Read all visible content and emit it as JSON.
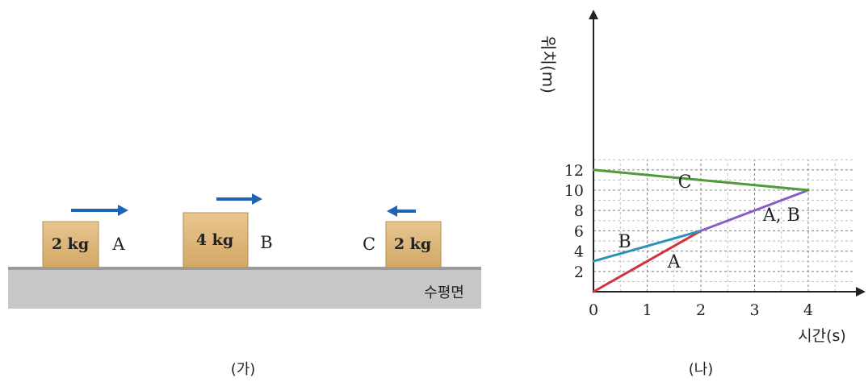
{
  "panel_left": {
    "caption": "(가)",
    "surface_label": "수평면",
    "blocks": [
      {
        "id": "A",
        "mass_label": "2 kg",
        "name_label": "A",
        "direction": "right"
      },
      {
        "id": "B",
        "mass_label": "4 kg",
        "name_label": "B",
        "direction": "right"
      },
      {
        "id": "C",
        "mass_label": "2 kg",
        "name_label": "C",
        "direction": "left"
      }
    ],
    "colors": {
      "block": "#dcb47a",
      "arrow": "#1f63b5",
      "surface": "#c4c6c8"
    }
  },
  "panel_right": {
    "caption": "(나)"
  },
  "chart_data": {
    "type": "line",
    "xlabel": "시간(s)",
    "ylabel": "위치(m)",
    "xlim": [
      0,
      4.8
    ],
    "ylim": [
      0,
      13.2
    ],
    "xticks": [
      0,
      1,
      2,
      3,
      4
    ],
    "yticks": [
      2,
      4,
      6,
      8,
      10,
      12
    ],
    "grid": true,
    "series": [
      {
        "name": "A",
        "color": "#d2333d",
        "x": [
          0,
          2
        ],
        "y": [
          0,
          6
        ]
      },
      {
        "name": "B",
        "color": "#2b93b8",
        "x": [
          0,
          2
        ],
        "y": [
          3,
          6
        ]
      },
      {
        "name": "A, B",
        "color": "#8a5cc8",
        "x": [
          2,
          4
        ],
        "y": [
          6,
          10
        ]
      },
      {
        "name": "C",
        "color": "#4e9a3c",
        "x": [
          0,
          4
        ],
        "y": [
          12,
          10
        ]
      }
    ]
  }
}
